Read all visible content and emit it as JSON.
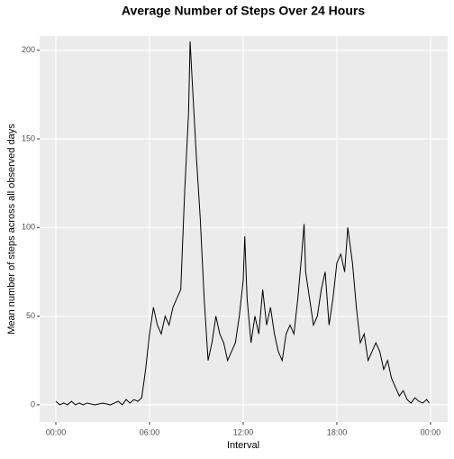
{
  "chart_data": {
    "type": "line",
    "title": "Average Number of Steps Over 24 Hours",
    "xlabel": "Interval",
    "ylabel": "Mean number of steps across all observed days",
    "x": [
      0,
      0.25,
      0.5,
      0.75,
      1,
      1.25,
      1.5,
      1.75,
      2,
      2.5,
      3,
      3.5,
      4,
      4.25,
      4.5,
      4.75,
      5,
      5.25,
      5.5,
      5.75,
      6,
      6.25,
      6.5,
      6.75,
      7,
      7.25,
      7.5,
      7.75,
      8,
      8.25,
      8.5,
      8.6,
      8.75,
      9,
      9.25,
      9.5,
      9.75,
      10,
      10.25,
      10.5,
      10.75,
      11,
      11.25,
      11.5,
      11.75,
      12,
      12.1,
      12.25,
      12.5,
      12.75,
      13,
      13.25,
      13.5,
      13.75,
      14,
      14.25,
      14.5,
      14.75,
      15,
      15.25,
      15.5,
      15.75,
      15.9,
      16,
      16.25,
      16.5,
      16.75,
      17,
      17.25,
      17.5,
      17.75,
      18,
      18.25,
      18.5,
      18.7,
      19,
      19.25,
      19.5,
      19.75,
      20,
      20.25,
      20.5,
      20.75,
      21,
      21.25,
      21.5,
      21.75,
      22,
      22.25,
      22.5,
      22.75,
      23,
      23.25,
      23.5,
      23.75,
      23.92
    ],
    "values": [
      2,
      0,
      1,
      0,
      2,
      0,
      1,
      0,
      1,
      0,
      1,
      0,
      2,
      0,
      3,
      1,
      3,
      2,
      4,
      20,
      40,
      55,
      45,
      40,
      50,
      45,
      55,
      60,
      65,
      120,
      165,
      205,
      180,
      140,
      105,
      60,
      25,
      35,
      50,
      40,
      35,
      25,
      30,
      35,
      50,
      70,
      95,
      60,
      35,
      50,
      40,
      65,
      45,
      55,
      40,
      30,
      25,
      40,
      45,
      40,
      60,
      85,
      102,
      75,
      60,
      45,
      50,
      65,
      75,
      45,
      60,
      80,
      85,
      75,
      100,
      80,
      55,
      35,
      40,
      25,
      30,
      35,
      30,
      20,
      25,
      15,
      10,
      5,
      8,
      3,
      1,
      4,
      2,
      1,
      3,
      1
    ],
    "color": "#000000",
    "xlim": [
      -1.04,
      25.1
    ],
    "ylim": [
      -9.7,
      208
    ],
    "xticks": [
      {
        "value": 0,
        "label": "00:00"
      },
      {
        "value": 6,
        "label": "06:00"
      },
      {
        "value": 12,
        "label": "12:00"
      },
      {
        "value": 18,
        "label": "18:00"
      },
      {
        "value": 24,
        "label": "00:00"
      }
    ],
    "yticks": [
      0,
      50,
      100,
      150,
      200
    ],
    "grid": true
  }
}
